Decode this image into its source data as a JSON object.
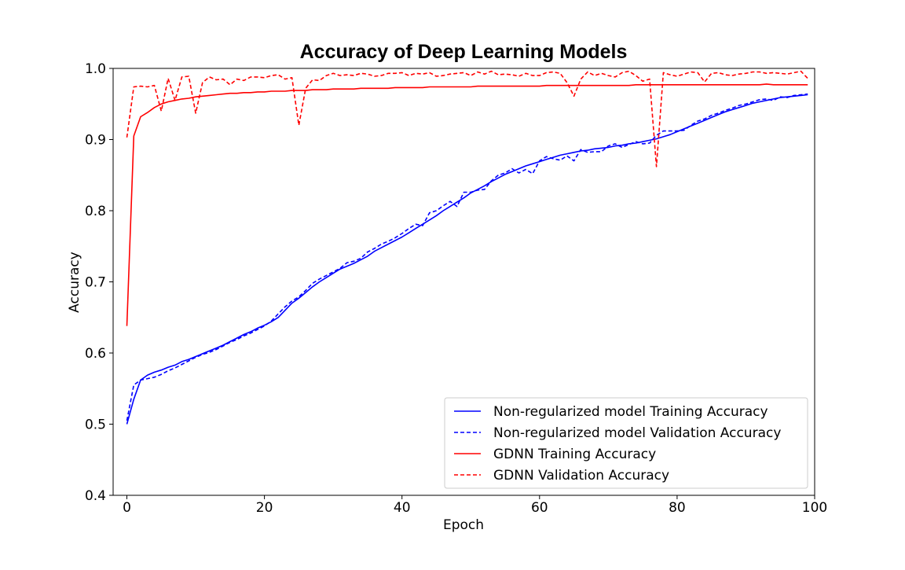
{
  "chart_data": {
    "type": "line",
    "title": "Accuracy of Deep Learning Models",
    "xlabel": "Epoch",
    "ylabel": "Accuracy",
    "xlim": [
      -2,
      100
    ],
    "ylim": [
      0.4,
      1.0
    ],
    "xticks": [
      0,
      20,
      40,
      60,
      80,
      100
    ],
    "yticks": [
      0.4,
      0.5,
      0.6,
      0.7,
      0.8,
      0.9,
      1.0
    ],
    "grid": false,
    "legend_position": "lower-right",
    "x": [
      0,
      1,
      2,
      3,
      4,
      5,
      6,
      7,
      8,
      9,
      10,
      11,
      12,
      13,
      14,
      15,
      16,
      17,
      18,
      19,
      20,
      21,
      22,
      23,
      24,
      25,
      26,
      27,
      28,
      29,
      30,
      31,
      32,
      33,
      34,
      35,
      36,
      37,
      38,
      39,
      40,
      41,
      42,
      43,
      44,
      45,
      46,
      47,
      48,
      49,
      50,
      51,
      52,
      53,
      54,
      55,
      56,
      57,
      58,
      59,
      60,
      61,
      62,
      63,
      64,
      65,
      66,
      67,
      68,
      69,
      70,
      71,
      72,
      73,
      74,
      75,
      76,
      77,
      78,
      79,
      80,
      81,
      82,
      83,
      84,
      85,
      86,
      87,
      88,
      89,
      90,
      91,
      92,
      93,
      94,
      95,
      96,
      97,
      98,
      99
    ],
    "series": [
      {
        "name": "Non-regularized model Training Accuracy",
        "color": "#0000ff",
        "style": "solid",
        "values": [
          0.5,
          0.535,
          0.562,
          0.569,
          0.573,
          0.576,
          0.58,
          0.583,
          0.588,
          0.591,
          0.595,
          0.599,
          0.603,
          0.607,
          0.611,
          0.616,
          0.621,
          0.626,
          0.63,
          0.635,
          0.639,
          0.644,
          0.65,
          0.66,
          0.67,
          0.677,
          0.685,
          0.693,
          0.7,
          0.706,
          0.712,
          0.718,
          0.722,
          0.726,
          0.731,
          0.736,
          0.743,
          0.748,
          0.753,
          0.758,
          0.763,
          0.769,
          0.775,
          0.781,
          0.787,
          0.793,
          0.8,
          0.806,
          0.812,
          0.818,
          0.825,
          0.83,
          0.835,
          0.841,
          0.846,
          0.851,
          0.855,
          0.859,
          0.863,
          0.866,
          0.869,
          0.872,
          0.875,
          0.878,
          0.88,
          0.882,
          0.884,
          0.885,
          0.887,
          0.888,
          0.889,
          0.891,
          0.892,
          0.894,
          0.895,
          0.897,
          0.899,
          0.901,
          0.904,
          0.907,
          0.911,
          0.915,
          0.919,
          0.923,
          0.927,
          0.931,
          0.935,
          0.939,
          0.942,
          0.945,
          0.948,
          0.951,
          0.953,
          0.955,
          0.957,
          0.959,
          0.96,
          0.961,
          0.962,
          0.963
        ]
      },
      {
        "name": "Non-regularized model Validation Accuracy",
        "color": "#0000ff",
        "style": "dashed",
        "values": [
          0.505,
          0.555,
          0.562,
          0.564,
          0.566,
          0.57,
          0.575,
          0.579,
          0.584,
          0.589,
          0.594,
          0.598,
          0.601,
          0.605,
          0.61,
          0.615,
          0.619,
          0.624,
          0.628,
          0.633,
          0.638,
          0.645,
          0.655,
          0.665,
          0.673,
          0.679,
          0.688,
          0.698,
          0.704,
          0.709,
          0.714,
          0.719,
          0.727,
          0.729,
          0.733,
          0.742,
          0.747,
          0.753,
          0.757,
          0.762,
          0.768,
          0.775,
          0.781,
          0.779,
          0.797,
          0.8,
          0.807,
          0.813,
          0.806,
          0.826,
          0.826,
          0.829,
          0.83,
          0.842,
          0.85,
          0.853,
          0.859,
          0.853,
          0.858,
          0.852,
          0.87,
          0.876,
          0.873,
          0.871,
          0.877,
          0.87,
          0.886,
          0.882,
          0.883,
          0.883,
          0.891,
          0.894,
          0.889,
          0.893,
          0.897,
          0.894,
          0.895,
          0.906,
          0.912,
          0.912,
          0.912,
          0.913,
          0.92,
          0.926,
          0.929,
          0.934,
          0.937,
          0.941,
          0.944,
          0.948,
          0.95,
          0.953,
          0.956,
          0.957,
          0.955,
          0.96,
          0.959,
          0.962,
          0.963,
          0.964
        ]
      },
      {
        "name": "GDNN Training Accuracy",
        "color": "#ff0000",
        "style": "solid",
        "values": [
          0.638,
          0.905,
          0.932,
          0.938,
          0.945,
          0.95,
          0.953,
          0.955,
          0.957,
          0.958,
          0.96,
          0.961,
          0.962,
          0.963,
          0.964,
          0.965,
          0.965,
          0.966,
          0.966,
          0.967,
          0.967,
          0.968,
          0.968,
          0.968,
          0.969,
          0.969,
          0.969,
          0.97,
          0.97,
          0.97,
          0.971,
          0.971,
          0.971,
          0.971,
          0.972,
          0.972,
          0.972,
          0.972,
          0.972,
          0.973,
          0.973,
          0.973,
          0.973,
          0.973,
          0.974,
          0.974,
          0.974,
          0.974,
          0.974,
          0.974,
          0.974,
          0.975,
          0.975,
          0.975,
          0.975,
          0.975,
          0.975,
          0.975,
          0.975,
          0.975,
          0.975,
          0.976,
          0.976,
          0.976,
          0.976,
          0.976,
          0.976,
          0.976,
          0.976,
          0.976,
          0.976,
          0.976,
          0.976,
          0.976,
          0.977,
          0.977,
          0.977,
          0.977,
          0.977,
          0.977,
          0.977,
          0.977,
          0.977,
          0.977,
          0.977,
          0.977,
          0.977,
          0.977,
          0.977,
          0.977,
          0.977,
          0.977,
          0.977,
          0.978,
          0.977,
          0.977,
          0.977,
          0.977,
          0.977,
          0.977
        ]
      },
      {
        "name": "GDNN Validation Accuracy",
        "color": "#ff0000",
        "style": "dashed",
        "values": [
          0.903,
          0.974,
          0.975,
          0.974,
          0.976,
          0.94,
          0.986,
          0.955,
          0.988,
          0.989,
          0.937,
          0.98,
          0.988,
          0.984,
          0.985,
          0.977,
          0.985,
          0.983,
          0.988,
          0.988,
          0.987,
          0.99,
          0.991,
          0.985,
          0.987,
          0.92,
          0.972,
          0.984,
          0.983,
          0.99,
          0.993,
          0.99,
          0.991,
          0.99,
          0.993,
          0.992,
          0.989,
          0.99,
          0.993,
          0.993,
          0.994,
          0.99,
          0.993,
          0.992,
          0.994,
          0.989,
          0.99,
          0.992,
          0.993,
          0.994,
          0.99,
          0.995,
          0.992,
          0.996,
          0.991,
          0.992,
          0.991,
          0.989,
          0.993,
          0.99,
          0.99,
          0.994,
          0.995,
          0.993,
          0.98,
          0.961,
          0.985,
          0.995,
          0.99,
          0.993,
          0.99,
          0.988,
          0.994,
          0.996,
          0.99,
          0.982,
          0.985,
          0.862,
          0.994,
          0.991,
          0.989,
          0.992,
          0.995,
          0.994,
          0.981,
          0.993,
          0.994,
          0.991,
          0.99,
          0.992,
          0.993,
          0.995,
          0.995,
          0.993,
          0.994,
          0.993,
          0.992,
          0.994,
          0.996,
          0.986
        ]
      }
    ]
  }
}
